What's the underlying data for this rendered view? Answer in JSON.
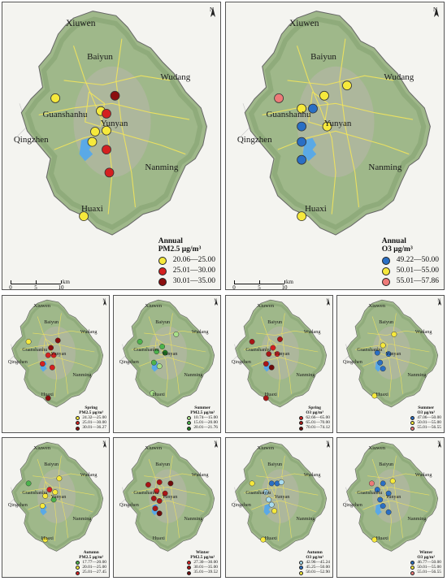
{
  "colors": {
    "background": "#f4f4f0",
    "land": "#9fb88a",
    "land_dark": "#7f9d6c",
    "urban": "#b8b5a8",
    "water": "#5aa9e6",
    "road": "#f2e45c",
    "boundary": "#666666"
  },
  "place_labels": {
    "xiuwen": "Xiuwen",
    "baiyun": "Baiyun",
    "wudang": "Wudang",
    "guanshanhu": "Guanshanhu",
    "yunyan": "Yunyan",
    "qingzhen": "Qingzhen",
    "nanming": "Nanming",
    "huaxi": "Huaxi"
  },
  "north_arrow": {
    "letter": "N",
    "icon": "north-arrow-icon"
  },
  "scale_bar": {
    "ticks": [
      "0",
      "5",
      "10"
    ],
    "unit": "km"
  },
  "panels": [
    {
      "id": "pm25-annual",
      "period": "Annual",
      "pollutant": "PM2.5",
      "unit": "μg/m³",
      "legend": [
        {
          "range": "20.06—25.00",
          "color": "#f6e93c"
        },
        {
          "range": "25.01—30.00",
          "color": "#d42020"
        },
        {
          "range": "30.01—35.00",
          "color": "#8b0e0e"
        }
      ],
      "stations": [
        {
          "lon": 106.63,
          "lat": 26.66,
          "class": 0
        },
        {
          "lon": 106.735,
          "lat": 26.665,
          "class": 2
        },
        {
          "lon": 106.71,
          "lat": 26.635,
          "class": 0
        },
        {
          "lon": 106.7,
          "lat": 26.595,
          "class": 0
        },
        {
          "lon": 106.72,
          "lat": 26.597,
          "class": 0
        },
        {
          "lon": 106.72,
          "lat": 26.63,
          "class": 1
        },
        {
          "lon": 106.695,
          "lat": 26.575,
          "class": 0
        },
        {
          "lon": 106.72,
          "lat": 26.56,
          "class": 1
        },
        {
          "lon": 106.725,
          "lat": 26.515,
          "class": 1
        },
        {
          "lon": 106.68,
          "lat": 26.43,
          "class": 0
        }
      ]
    },
    {
      "id": "o3-annual",
      "period": "Annual",
      "pollutant": "O3",
      "unit": "μg/m³",
      "legend": [
        {
          "range": "49.22—50.00",
          "color": "#2a6fc4"
        },
        {
          "range": "50.01—55.00",
          "color": "#f6e93c"
        },
        {
          "range": "55.01—57.86",
          "color": "#ee7a78"
        }
      ],
      "stations": [
        {
          "lon": 106.63,
          "lat": 26.66,
          "class": 2
        },
        {
          "lon": 106.75,
          "lat": 26.685,
          "class": 1
        },
        {
          "lon": 106.71,
          "lat": 26.665,
          "class": 1
        },
        {
          "lon": 106.67,
          "lat": 26.64,
          "class": 1
        },
        {
          "lon": 106.69,
          "lat": 26.64,
          "class": 0
        },
        {
          "lon": 106.715,
          "lat": 26.605,
          "class": 1
        },
        {
          "lon": 106.67,
          "lat": 26.605,
          "class": 0
        },
        {
          "lon": 106.67,
          "lat": 26.575,
          "class": 0
        },
        {
          "lon": 106.67,
          "lat": 26.54,
          "class": 0
        },
        {
          "lon": 106.67,
          "lat": 26.43,
          "class": 1
        }
      ]
    },
    {
      "id": "pm25-spring",
      "period": "Spring",
      "pollutant": "PM2.5",
      "unit": "μg/m³",
      "legend": [
        {
          "range": "24.32—25.00",
          "color": "#f6e93c"
        },
        {
          "range": "25.01—30.00",
          "color": "#d42020"
        },
        {
          "range": "30.01—36.27",
          "color": "#8b0e0e"
        }
      ],
      "stations": [
        {
          "lon": 106.63,
          "lat": 26.66,
          "class": 0
        },
        {
          "lon": 106.735,
          "lat": 26.665,
          "class": 2
        },
        {
          "lon": 106.71,
          "lat": 26.635,
          "class": 2
        },
        {
          "lon": 106.7,
          "lat": 26.605,
          "class": 1
        },
        {
          "lon": 106.72,
          "lat": 26.605,
          "class": 1
        },
        {
          "lon": 106.68,
          "lat": 26.57,
          "class": 1
        },
        {
          "lon": 106.715,
          "lat": 26.555,
          "class": 1
        },
        {
          "lon": 106.7,
          "lat": 26.43,
          "class": 2
        }
      ]
    },
    {
      "id": "pm25-summer",
      "period": "Summer",
      "pollutant": "PM2.5",
      "unit": "μg/m³",
      "legend": [
        {
          "range": "10.74—15.00",
          "color": "#a8e08a"
        },
        {
          "range": "15.01—20.00",
          "color": "#4cb34c"
        },
        {
          "range": "20.01—21.76",
          "color": "#1f7a1f"
        }
      ],
      "stations": [
        {
          "lon": 106.63,
          "lat": 26.66,
          "class": 1
        },
        {
          "lon": 106.76,
          "lat": 26.69,
          "class": 0
        },
        {
          "lon": 106.71,
          "lat": 26.64,
          "class": 1
        },
        {
          "lon": 106.69,
          "lat": 26.62,
          "class": 1
        },
        {
          "lon": 106.72,
          "lat": 26.615,
          "class": 2
        },
        {
          "lon": 106.68,
          "lat": 26.575,
          "class": 1
        },
        {
          "lon": 106.7,
          "lat": 26.56,
          "class": 0
        },
        {
          "lon": 106.675,
          "lat": 26.45,
          "class": 0
        }
      ]
    },
    {
      "id": "o3-spring",
      "period": "Spring",
      "pollutant": "O3",
      "unit": "μg/m³",
      "legend": [
        {
          "range": "62.66—65.00",
          "color": "#d42020"
        },
        {
          "range": "65.01—70.00",
          "color": "#a81616"
        },
        {
          "range": "70.01—74.12",
          "color": "#6e0b0b"
        }
      ],
      "stations": [
        {
          "lon": 106.63,
          "lat": 26.66,
          "class": 1
        },
        {
          "lon": 106.73,
          "lat": 26.67,
          "class": 1
        },
        {
          "lon": 106.705,
          "lat": 26.635,
          "class": 0
        },
        {
          "lon": 106.69,
          "lat": 26.61,
          "class": 1
        },
        {
          "lon": 106.72,
          "lat": 26.61,
          "class": 0
        },
        {
          "lon": 106.68,
          "lat": 26.57,
          "class": 1
        },
        {
          "lon": 106.7,
          "lat": 26.555,
          "class": 2
        },
        {
          "lon": 106.68,
          "lat": 26.43,
          "class": 1
        }
      ]
    },
    {
      "id": "o3-summer",
      "period": "Summer",
      "pollutant": "O3",
      "unit": "μg/m³",
      "legend": [
        {
          "range": "47.06—50.00",
          "color": "#2a6fc4"
        },
        {
          "range": "50.01—55.00",
          "color": "#f6e93c"
        },
        {
          "range": "55.01—56.55",
          "color": "#ee7a78"
        }
      ],
      "stations": [
        {
          "lon": 106.74,
          "lat": 26.69,
          "class": 1
        },
        {
          "lon": 106.7,
          "lat": 26.645,
          "class": 1
        },
        {
          "lon": 106.68,
          "lat": 26.615,
          "class": 0
        },
        {
          "lon": 106.72,
          "lat": 26.61,
          "class": 0
        },
        {
          "lon": 106.69,
          "lat": 26.575,
          "class": 0
        },
        {
          "lon": 106.7,
          "lat": 26.55,
          "class": 0
        },
        {
          "lon": 106.67,
          "lat": 26.44,
          "class": 1
        }
      ]
    },
    {
      "id": "pm25-autumn",
      "period": "Autumn",
      "pollutant": "PM2.5",
      "unit": "μg/m³",
      "legend": [
        {
          "range": "17.77—20.00",
          "color": "#4cb34c"
        },
        {
          "range": "20.01—25.00",
          "color": "#f6e93c"
        },
        {
          "range": "25.01—27.45",
          "color": "#d42020"
        }
      ],
      "stations": [
        {
          "lon": 106.63,
          "lat": 26.665,
          "class": 0
        },
        {
          "lon": 106.74,
          "lat": 26.685,
          "class": 1
        },
        {
          "lon": 106.705,
          "lat": 26.64,
          "class": 2
        },
        {
          "lon": 106.725,
          "lat": 26.63,
          "class": 1
        },
        {
          "lon": 106.69,
          "lat": 26.615,
          "class": 1
        },
        {
          "lon": 106.72,
          "lat": 26.6,
          "class": 0
        },
        {
          "lon": 106.68,
          "lat": 26.575,
          "class": 1
        },
        {
          "lon": 106.69,
          "lat": 26.44,
          "class": 1
        }
      ]
    },
    {
      "id": "pm25-winter",
      "period": "Winter",
      "pollutant": "PM2.5",
      "unit": "μg/m³",
      "legend": [
        {
          "range": "27.30—30.00",
          "color": "#d42020"
        },
        {
          "range": "30.01—35.00",
          "color": "#a81616"
        },
        {
          "range": "35.01—39.52",
          "color": "#6e0b0b"
        }
      ],
      "stations": [
        {
          "lon": 106.66,
          "lat": 26.66,
          "class": 1
        },
        {
          "lon": 106.7,
          "lat": 26.67,
          "class": 1
        },
        {
          "lon": 106.74,
          "lat": 26.665,
          "class": 2
        },
        {
          "lon": 106.69,
          "lat": 26.635,
          "class": 0
        },
        {
          "lon": 106.72,
          "lat": 26.625,
          "class": 1
        },
        {
          "lon": 106.68,
          "lat": 26.605,
          "class": 1
        },
        {
          "lon": 106.7,
          "lat": 26.595,
          "class": 1
        },
        {
          "lon": 106.685,
          "lat": 26.565,
          "class": 1
        },
        {
          "lon": 106.7,
          "lat": 26.545,
          "class": 2
        }
      ]
    },
    {
      "id": "o3-autumn",
      "period": "Autumn",
      "pollutant": "O3",
      "unit": "μg/m³",
      "legend": [
        {
          "range": "42.96—45.24",
          "color": "#a9dcf0"
        },
        {
          "range": "45.25—50.00",
          "color": "#2a6fc4"
        },
        {
          "range": "50.01—52.90",
          "color": "#f6e93c"
        }
      ],
      "stations": [
        {
          "lon": 106.63,
          "lat": 26.665,
          "class": 2
        },
        {
          "lon": 106.7,
          "lat": 26.665,
          "class": 1
        },
        {
          "lon": 106.72,
          "lat": 26.665,
          "class": 1
        },
        {
          "lon": 106.735,
          "lat": 26.67,
          "class": 0
        },
        {
          "lon": 106.68,
          "lat": 26.63,
          "class": 0
        },
        {
          "lon": 106.69,
          "lat": 26.6,
          "class": 0
        },
        {
          "lon": 106.7,
          "lat": 26.58,
          "class": 0
        },
        {
          "lon": 106.71,
          "lat": 26.555,
          "class": 2
        },
        {
          "lon": 106.67,
          "lat": 26.44,
          "class": 2
        }
      ]
    },
    {
      "id": "o3-winter",
      "period": "Winter",
      "pollutant": "O3",
      "unit": "μg/m³",
      "legend": [
        {
          "range": "46.77—50.00",
          "color": "#2a6fc4"
        },
        {
          "range": "50.01—55.00",
          "color": "#f6e93c"
        },
        {
          "range": "55.01—56.55",
          "color": "#ee7a78"
        }
      ],
      "stations": [
        {
          "lon": 106.66,
          "lat": 26.665,
          "class": 2
        },
        {
          "lon": 106.7,
          "lat": 26.665,
          "class": 0
        },
        {
          "lon": 106.735,
          "lat": 26.675,
          "class": 1
        },
        {
          "lon": 106.68,
          "lat": 26.64,
          "class": 0
        },
        {
          "lon": 106.72,
          "lat": 26.625,
          "class": 0
        },
        {
          "lon": 106.69,
          "lat": 26.6,
          "class": 0
        },
        {
          "lon": 106.7,
          "lat": 26.575,
          "class": 0
        },
        {
          "lon": 106.72,
          "lat": 26.55,
          "class": 0
        },
        {
          "lon": 106.67,
          "lat": 26.44,
          "class": 1
        }
      ]
    }
  ]
}
